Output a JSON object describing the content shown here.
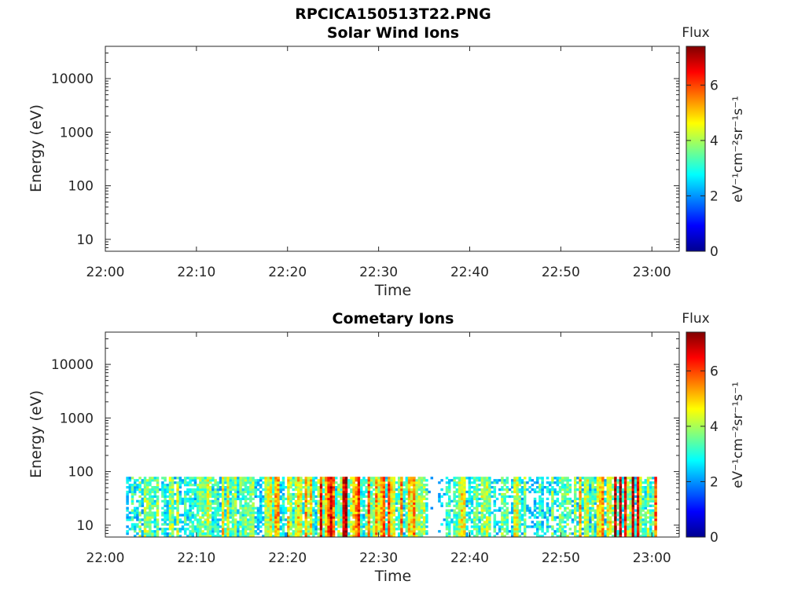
{
  "figure_title": "RPCICA150513T22.PNG",
  "chart_data": [
    {
      "type": "heatmap",
      "title": "Solar Wind Ions",
      "xlabel": "Time",
      "ylabel": "Energy (eV)",
      "yscale": "log",
      "ylim": [
        6,
        40000
      ],
      "xlim": [
        "22:00",
        "23:03"
      ],
      "x_ticks": [
        "22:00",
        "22:10",
        "22:20",
        "22:30",
        "22:40",
        "22:50",
        "23:00"
      ],
      "y_ticks": [
        "10",
        "100",
        "1000",
        "10000"
      ],
      "colorbar": {
        "label": "Flux",
        "units": "eV⁻¹cm⁻²sr⁻¹s⁻¹",
        "range": [
          0,
          7.4
        ],
        "ticks": [
          "0",
          "2",
          "4",
          "6"
        ],
        "colormap": "jet"
      },
      "grid": false,
      "data": []
    },
    {
      "type": "heatmap",
      "title": "Cometary Ions",
      "xlabel": "Time",
      "ylabel": "Energy (eV)",
      "yscale": "log",
      "ylim": [
        6,
        40000
      ],
      "xlim": [
        "22:00",
        "23:03"
      ],
      "x_ticks": [
        "22:00",
        "22:10",
        "22:20",
        "22:30",
        "22:40",
        "22:50",
        "23:00"
      ],
      "y_ticks": [
        "10",
        "100",
        "1000",
        "10000"
      ],
      "colorbar": {
        "label": "Flux",
        "units": "eV⁻¹cm⁻²sr⁻¹s⁻¹",
        "range": [
          0,
          7.4
        ],
        "ticks": [
          "0",
          "2",
          "4",
          "6"
        ],
        "colormap": "jet"
      },
      "grid": false,
      "energy_range": [
        6,
        80
      ],
      "time_range": [
        "22:02",
        "23:00:30"
      ],
      "activity_profile": [
        [
          "22:02",
          2.5
        ],
        [
          "22:04",
          3.5
        ],
        [
          "22:06",
          3.2
        ],
        [
          "22:07",
          4.5
        ],
        [
          "22:08",
          3.4
        ],
        [
          "22:09",
          4.2
        ],
        [
          "22:10",
          3.8
        ],
        [
          "22:11",
          4.5
        ],
        [
          "22:12",
          3.5
        ],
        [
          "22:13",
          4.6
        ],
        [
          "22:14",
          4.0
        ],
        [
          "22:15",
          4.4
        ],
        [
          "22:16",
          3.6
        ],
        [
          "22:17",
          4.3
        ],
        [
          "22:18",
          4.0
        ],
        [
          "22:19",
          4.8
        ],
        [
          "22:20",
          5.2
        ],
        [
          "22:21",
          5.0
        ],
        [
          "22:22",
          4.6
        ],
        [
          "22:23",
          5.6
        ],
        [
          "22:24",
          6.0
        ],
        [
          "22:25",
          5.9
        ],
        [
          "22:26",
          6.2
        ],
        [
          "22:27",
          6.3
        ],
        [
          "22:28",
          5.9
        ],
        [
          "22:29",
          5.2
        ],
        [
          "22:30",
          4.8
        ],
        [
          "22:31",
          4.9
        ],
        [
          "22:32",
          4.5
        ],
        [
          "22:33",
          5.4
        ],
        [
          "22:34",
          5.0
        ],
        [
          "22:35",
          3.5
        ],
        [
          "22:36",
          0.5
        ],
        [
          "22:37",
          2.8
        ],
        [
          "22:38",
          3.4
        ],
        [
          "22:39",
          4.5
        ],
        [
          "22:40",
          3.0
        ],
        [
          "22:41",
          3.6
        ],
        [
          "22:42",
          4.0
        ],
        [
          "22:43",
          3.2
        ],
        [
          "22:44",
          3.0
        ],
        [
          "22:45",
          4.0
        ],
        [
          "22:46",
          3.6
        ],
        [
          "22:47",
          3.0
        ],
        [
          "22:48",
          2.8
        ],
        [
          "22:49",
          3.2
        ],
        [
          "22:50",
          3.4
        ],
        [
          "22:51",
          3.0
        ],
        [
          "22:52",
          4.4
        ],
        [
          "22:53",
          4.2
        ],
        [
          "22:54",
          4.8
        ],
        [
          "22:55",
          5.5
        ],
        [
          "22:56",
          6.0
        ],
        [
          "22:57",
          6.0
        ],
        [
          "22:58",
          5.9
        ],
        [
          "22:59",
          5.6
        ],
        [
          "23:00",
          5.6
        ]
      ]
    }
  ]
}
